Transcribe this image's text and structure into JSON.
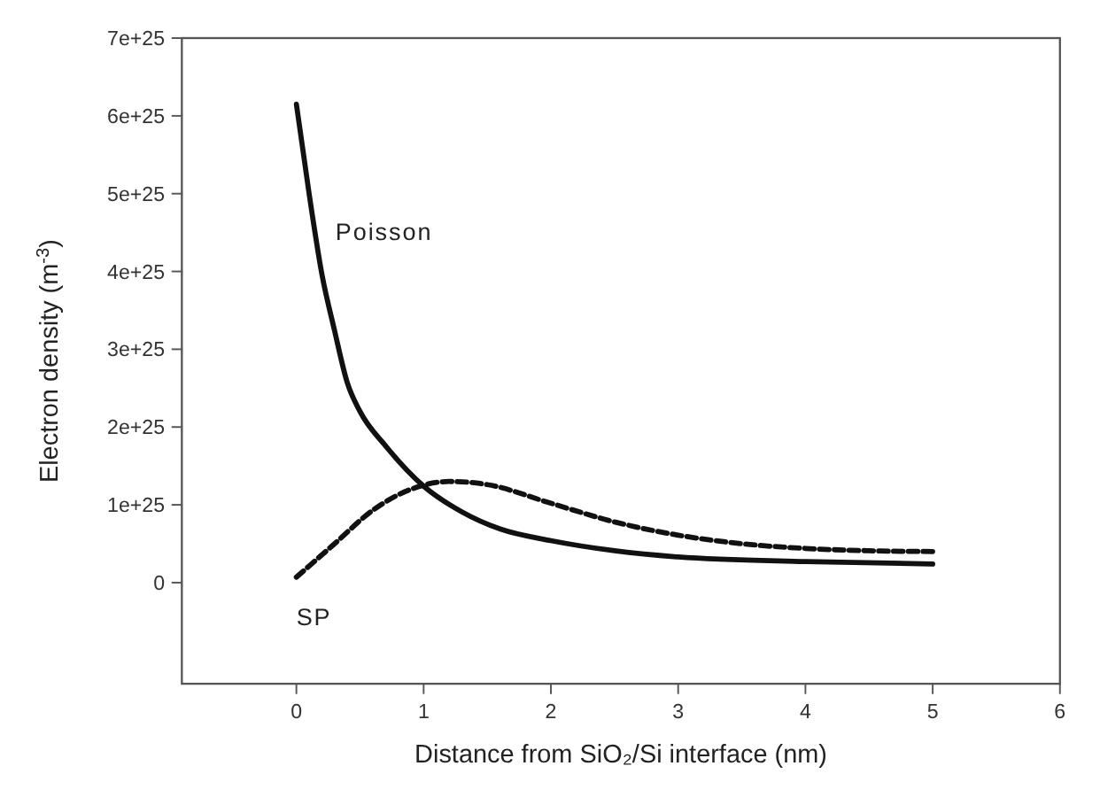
{
  "chart_data": {
    "type": "line",
    "xlabel": "Distance from SiO₂/Si interface (nm)",
    "ylabel": "Electron density (m$^{-3}$)",
    "xlim": [
      -0.9,
      6
    ],
    "xticks": [
      0,
      1,
      2,
      3,
      4,
      5,
      6
    ],
    "ylim": [
      -1.3e+25,
      7e+25
    ],
    "yticks": [
      0,
      {
        "value": 1e+25,
        "label": "1e+25"
      },
      {
        "value": 2e+25,
        "label": "2e+25"
      },
      {
        "value": 3e+25,
        "label": "3e+25"
      },
      {
        "value": 4e+25,
        "label": "4e+25"
      },
      {
        "value": 5e+25,
        "label": "5e+25"
      },
      {
        "value": 6e+25,
        "label": "6e+25"
      },
      {
        "value": 7e+25,
        "label": "7e+25"
      }
    ],
    "series": [
      {
        "name": "Poisson",
        "color": "#111111",
        "line_style": "solid",
        "x": [
          0,
          0.1,
          0.2,
          0.3,
          0.4,
          0.5,
          0.7,
          1,
          1.3,
          1.6,
          2,
          2.5,
          3,
          4,
          5
        ],
        "values": [
          6.15e+25,
          5e+25,
          3.97e+25,
          3.24e+25,
          2.57e+25,
          2.2e+25,
          1.76e+25,
          1.24e+25,
          9.1e+24,
          6.9e+24,
          5.4e+24,
          4.1e+24,
          3.3e+24,
          2.7e+24,
          2.4e+24
        ]
      },
      {
        "name": "SP",
        "color": "#111111",
        "line_style": "dashed",
        "x": [
          0,
          0.3,
          0.6,
          0.9,
          1.2,
          1.5,
          2,
          2.5,
          3,
          3.5,
          4,
          4.5,
          5
        ],
        "values": [
          7e+23,
          5e+24,
          9.3e+24,
          1.2e+25,
          1.3e+25,
          1.26e+25,
          1.02e+25,
          7.8e+24,
          6.1e+24,
          5e+24,
          4.4e+24,
          4.1e+24,
          4e+24
        ]
      }
    ]
  }
}
